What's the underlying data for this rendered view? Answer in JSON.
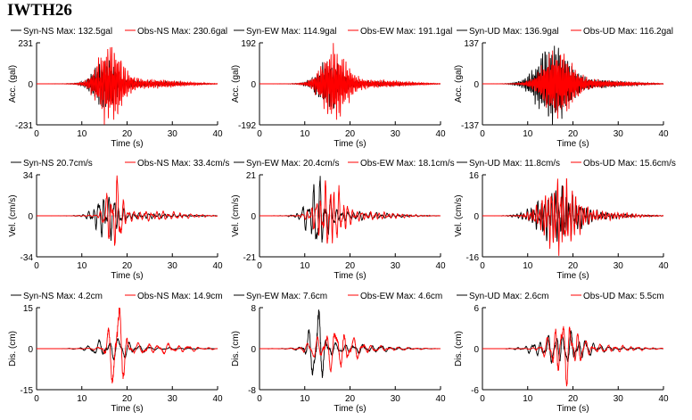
{
  "station": "IWTH26",
  "colors": {
    "syn": "#000000",
    "obs": "#ff0000",
    "axis": "#000000"
  },
  "chart_data": [
    {
      "type": "line",
      "quantity": "acc",
      "component": "NS",
      "xlabel": "Time (s)",
      "ylabel": "Acc. (gal)",
      "xlim": [
        0,
        40
      ],
      "xticks": [
        "0",
        "10",
        "20",
        "30",
        "40"
      ],
      "ylim": [
        -231,
        231
      ],
      "yticks": [
        "231",
        "0",
        "-231"
      ],
      "legend": {
        "syn": "Syn-NS  Max: 132.5gal",
        "obs": "Obs-NS  Max: 230.6gal"
      },
      "series": [
        {
          "name": "Syn-NS",
          "max": 132.5,
          "params": {
            "kind": "burst",
            "center": 15.2,
            "width": 3.2,
            "freq": 3.2,
            "amp": 132.5,
            "seed": 11
          }
        },
        {
          "name": "Obs-NS",
          "max": 230.6,
          "params": {
            "kind": "burst",
            "center": 16.2,
            "width": 3.4,
            "freq": 3.4,
            "amp": 230.6,
            "seed": 12
          }
        }
      ]
    },
    {
      "type": "line",
      "quantity": "acc",
      "component": "EW",
      "xlabel": "Time (s)",
      "ylabel": "Acc. (gal)",
      "xlim": [
        0,
        40
      ],
      "xticks": [
        "0",
        "10",
        "20",
        "30",
        "40"
      ],
      "ylim": [
        -192,
        192
      ],
      "yticks": [
        "192",
        "0",
        "-192"
      ],
      "legend": {
        "syn": "Syn-EW  Max: 114.9gal",
        "obs": "Obs-EW  Max: 191.1gal"
      },
      "series": [
        {
          "name": "Syn-EW",
          "max": 114.9,
          "params": {
            "kind": "burst",
            "center": 15.5,
            "width": 3.4,
            "freq": 3.0,
            "amp": 114.9,
            "seed": 21
          }
        },
        {
          "name": "Obs-EW",
          "max": 191.1,
          "params": {
            "kind": "burst",
            "center": 16.5,
            "width": 3.6,
            "freq": 3.6,
            "amp": 191.1,
            "seed": 22
          }
        }
      ]
    },
    {
      "type": "line",
      "quantity": "acc",
      "component": "UD",
      "xlabel": "Time (s)",
      "ylabel": "Acc. (gal)",
      "xlim": [
        0,
        40
      ],
      "xticks": [
        "0",
        "10",
        "20",
        "30",
        "40"
      ],
      "ylim": [
        -137,
        137
      ],
      "yticks": [
        "137",
        "0",
        "-137"
      ],
      "legend": {
        "syn": "Syn-UD  Max: 136.9gal",
        "obs": "Obs-UD  Max: 116.2gal"
      },
      "series": [
        {
          "name": "Syn-UD",
          "max": 136.9,
          "params": {
            "kind": "burst",
            "center": 15.5,
            "width": 4.5,
            "freq": 3.4,
            "amp": 136.9,
            "seed": 31
          }
        },
        {
          "name": "Obs-UD",
          "max": 116.2,
          "params": {
            "kind": "burst",
            "center": 16.5,
            "width": 4.2,
            "freq": 4.0,
            "amp": 116.2,
            "seed": 32
          }
        }
      ]
    },
    {
      "type": "line",
      "quantity": "vel",
      "component": "NS",
      "xlabel": "Time (s)",
      "ylabel": "Vel. (cm/s)",
      "xlim": [
        0,
        40
      ],
      "xticks": [
        "0",
        "10",
        "20",
        "30",
        "40"
      ],
      "ylim": [
        -34,
        34
      ],
      "yticks": [
        "34",
        "0",
        "-34"
      ],
      "legend": {
        "syn": "Syn-NS  20.7cm/s",
        "obs": "Obs-NS  Max: 33.4cm/s"
      },
      "series": [
        {
          "name": "Syn-NS",
          "max": 20.7,
          "params": {
            "kind": "burst",
            "center": 15.5,
            "width": 3.0,
            "freq": 0.9,
            "amp": 20.7,
            "seed": 41
          }
        },
        {
          "name": "Obs-NS",
          "max": 33.4,
          "params": {
            "kind": "burst",
            "center": 17.2,
            "width": 2.0,
            "freq": 0.8,
            "amp": 33.4,
            "seed": 42
          }
        }
      ]
    },
    {
      "type": "line",
      "quantity": "vel",
      "component": "EW",
      "xlabel": "Time (s)",
      "ylabel": "Vel. (cm/s)",
      "xlim": [
        0,
        40
      ],
      "xticks": [
        "0",
        "10",
        "20",
        "30",
        "40"
      ],
      "ylim": [
        -21,
        21
      ],
      "yticks": [
        "21",
        "0",
        "-21"
      ],
      "legend": {
        "syn": "Syn-EW  Max: 20.4cm/s",
        "obs": "Obs-EW  Max: 18.1cm/s"
      },
      "series": [
        {
          "name": "Syn-EW",
          "max": 20.4,
          "params": {
            "kind": "burst",
            "center": 13.0,
            "width": 2.8,
            "freq": 0.8,
            "amp": 20.4,
            "seed": 51
          }
        },
        {
          "name": "Obs-EW",
          "max": 18.1,
          "params": {
            "kind": "burst",
            "center": 15.5,
            "width": 3.5,
            "freq": 1.0,
            "amp": 18.1,
            "seed": 52
          }
        }
      ]
    },
    {
      "type": "line",
      "quantity": "vel",
      "component": "UD",
      "xlabel": "Time (s)",
      "ylabel": "Vel. (cm/s)",
      "xlim": [
        0,
        40
      ],
      "xticks": [
        "0",
        "10",
        "20",
        "30",
        "40"
      ],
      "ylim": [
        -16,
        16
      ],
      "yticks": [
        "16",
        "0",
        "-16"
      ],
      "legend": {
        "syn": "Syn-UD  Max: 11.8cm/s",
        "obs": "Obs-UD  Max: 15.6cm/s"
      },
      "series": [
        {
          "name": "Syn-UD",
          "max": 11.8,
          "params": {
            "kind": "burst",
            "center": 16.5,
            "width": 5.5,
            "freq": 1.3,
            "amp": 11.8,
            "seed": 61
          }
        },
        {
          "name": "Obs-UD",
          "max": 15.6,
          "params": {
            "kind": "burst",
            "center": 17.0,
            "width": 4.5,
            "freq": 1.5,
            "amp": 15.6,
            "seed": 62
          }
        }
      ]
    },
    {
      "type": "line",
      "quantity": "dis",
      "component": "NS",
      "xlabel": "Time (s)",
      "ylabel": "Dis. (cm)",
      "xlim": [
        0,
        40
      ],
      "xticks": [
        "0",
        "10",
        "20",
        "30",
        "40"
      ],
      "ylim": [
        -15,
        15
      ],
      "yticks": [
        "15",
        "0",
        "-15"
      ],
      "legend": {
        "syn": "Syn-NS  Max: 4.2cm",
        "obs": "Obs-NS  Max: 14.9cm"
      },
      "series": [
        {
          "name": "Syn-NS",
          "max": 4.2,
          "params": {
            "kind": "burst",
            "center": 17.0,
            "width": 5.0,
            "freq": 0.45,
            "amp": 4.2,
            "seed": 71
          }
        },
        {
          "name": "Obs-NS",
          "max": 14.9,
          "params": {
            "kind": "burst",
            "center": 17.8,
            "width": 2.2,
            "freq": 0.45,
            "amp": 14.9,
            "seed": 72
          }
        }
      ]
    },
    {
      "type": "line",
      "quantity": "dis",
      "component": "EW",
      "xlabel": "Time (s)",
      "ylabel": "Dis. (cm)",
      "xlim": [
        0,
        40
      ],
      "xticks": [
        "0",
        "10",
        "20",
        "30",
        "40"
      ],
      "ylim": [
        -8,
        8
      ],
      "yticks": [
        "8",
        "0",
        "-8"
      ],
      "legend": {
        "syn": "Syn-EW  Max: 7.6cm",
        "obs": "Obs-EW  Max: 4.6cm"
      },
      "series": [
        {
          "name": "Syn-EW",
          "max": 7.6,
          "params": {
            "kind": "burst",
            "center": 12.8,
            "width": 2.2,
            "freq": 0.5,
            "amp": 7.6,
            "seed": 81
          }
        },
        {
          "name": "Obs-EW",
          "max": 4.6,
          "params": {
            "kind": "burst",
            "center": 16.5,
            "width": 5.0,
            "freq": 0.5,
            "amp": 4.6,
            "seed": 82
          }
        }
      ]
    },
    {
      "type": "line",
      "quantity": "dis",
      "component": "UD",
      "xlabel": "Time (s)",
      "ylabel": "Dis. (cm)",
      "xlim": [
        0,
        40
      ],
      "xticks": [
        "0",
        "10",
        "20",
        "30",
        "40"
      ],
      "ylim": [
        -6,
        6
      ],
      "yticks": [
        "6",
        "0",
        "-6"
      ],
      "legend": {
        "syn": "Syn-UD  Max: 2.6cm",
        "obs": "Obs-UD  Max: 5.5cm"
      },
      "series": [
        {
          "name": "Syn-UD",
          "max": 2.6,
          "params": {
            "kind": "burst",
            "center": 17.5,
            "width": 6.0,
            "freq": 0.6,
            "amp": 2.6,
            "seed": 91
          }
        },
        {
          "name": "Obs-UD",
          "max": 5.5,
          "params": {
            "kind": "burst",
            "center": 18.0,
            "width": 3.5,
            "freq": 0.6,
            "amp": 5.5,
            "seed": 92
          }
        }
      ]
    }
  ]
}
